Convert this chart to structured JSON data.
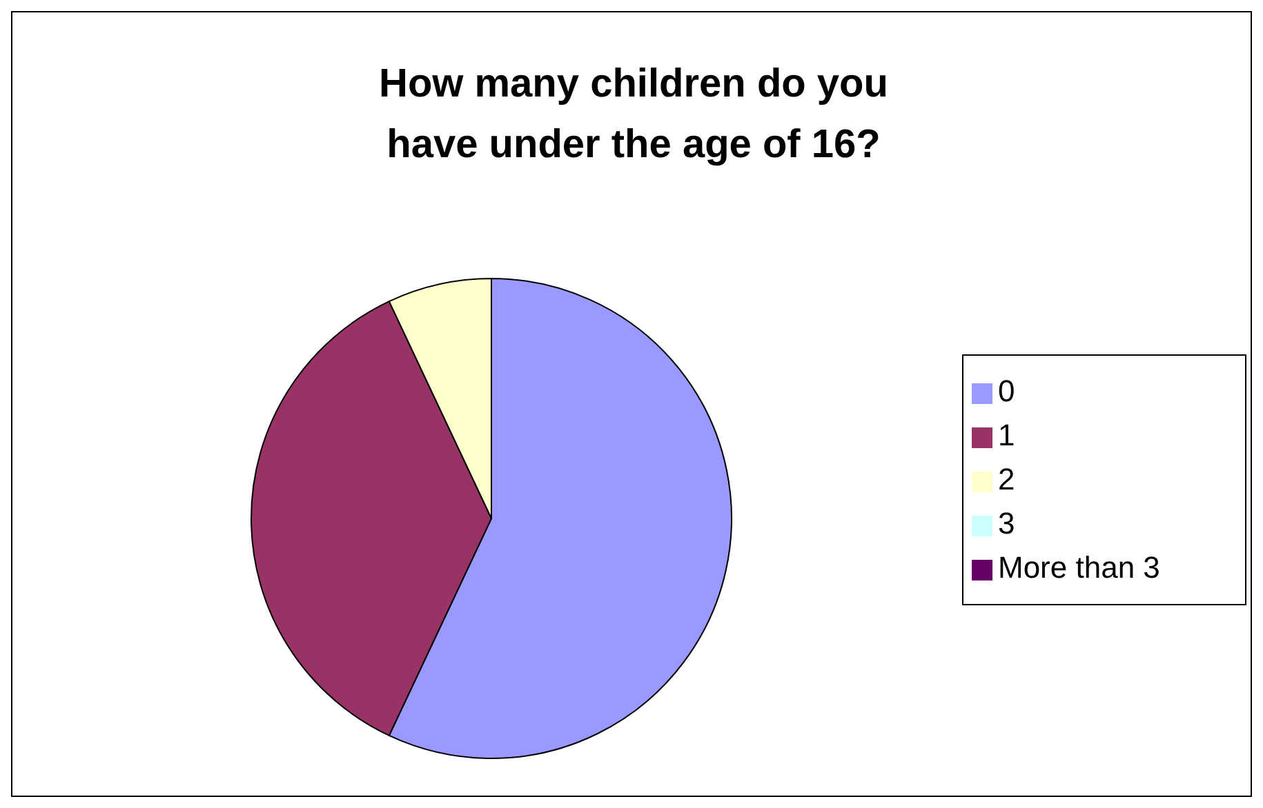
{
  "chart_data": {
    "type": "pie",
    "title": "How many children do you have under the age of 16?",
    "categories": [
      "0",
      "1",
      "2",
      "3",
      "More than 3"
    ],
    "values": [
      57,
      36,
      7,
      0,
      0
    ],
    "colors": [
      "#9999ff",
      "#993366",
      "#ffffcc",
      "#ccffff",
      "#660066"
    ],
    "legend": "right"
  }
}
